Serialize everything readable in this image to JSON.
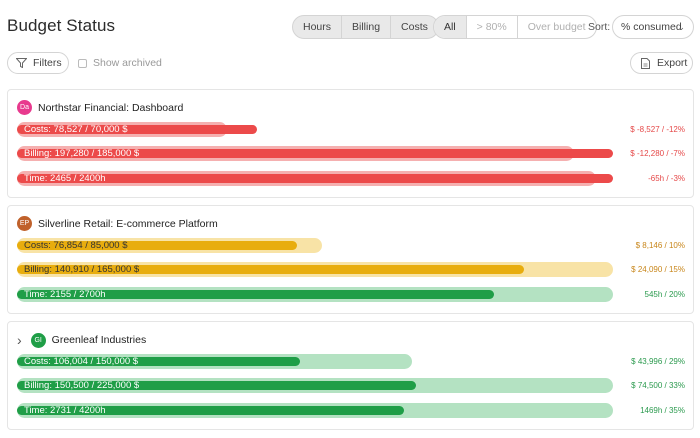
{
  "page_title": "Budget Status",
  "unit_toggle": [
    "Hours",
    "Billing",
    "Costs"
  ],
  "status_filter": [
    {
      "label": "All",
      "active": true
    },
    {
      "label": "> 80%",
      "active": false
    },
    {
      "label": "Over budget",
      "active": false
    }
  ],
  "sort": {
    "label": "Sort:",
    "value": "% consumed"
  },
  "toolbar": {
    "filters_label": "Filters",
    "show_archived_label": "Show archived",
    "export_label": "Export"
  },
  "projects": [
    {
      "initials": "Da",
      "avatar_color": "#e83a8e",
      "name": "Northstar Financial: Dashboard",
      "expandable": false,
      "bars": [
        {
          "label": "Costs: 78,527 / 70,000 $",
          "delta": "$ -8,527 / -12%",
          "status": "red",
          "consumed": 1.12
        },
        {
          "label": "Billing: 197,280 / 185,000 $",
          "delta": "$ -12,280 / -7%",
          "status": "red",
          "consumed": 1.07
        },
        {
          "label": "Time: 2465 / 2400h",
          "delta": "-65h / -3%",
          "status": "red",
          "consumed": 1.03
        }
      ]
    },
    {
      "initials": "EP",
      "avatar_color": "#c0612b",
      "name": "Silverline Retail: E-commerce Platform",
      "expandable": false,
      "bars": [
        {
          "label": "Costs: 76,854 / 85,000 $",
          "delta": "$ 8,146 / 10%",
          "status": "yellow",
          "consumed": 0.9
        },
        {
          "label": "Billing: 140,910 / 165,000 $",
          "delta": "$ 24,090 / 15%",
          "status": "yellow",
          "consumed": 0.85
        },
        {
          "label": "Time: 2155 / 2700h",
          "delta": "545h / 20%",
          "status": "green",
          "consumed": 0.8
        }
      ]
    },
    {
      "initials": "GI",
      "avatar_color": "#1f9e47",
      "name": "Greenleaf Industries",
      "expandable": true,
      "bars": [
        {
          "label": "Costs: 106,004 / 150,000 $",
          "delta": "$ 43,996 / 29%",
          "status": "green",
          "consumed": 0.71
        },
        {
          "label": "Billing: 150,500 / 225,000 $",
          "delta": "$ 74,500 / 33%",
          "status": "green",
          "consumed": 0.67
        },
        {
          "label": "Time: 2731 / 4200h",
          "delta": "1469h / 35%",
          "status": "green",
          "consumed": 0.65
        }
      ]
    }
  ]
}
